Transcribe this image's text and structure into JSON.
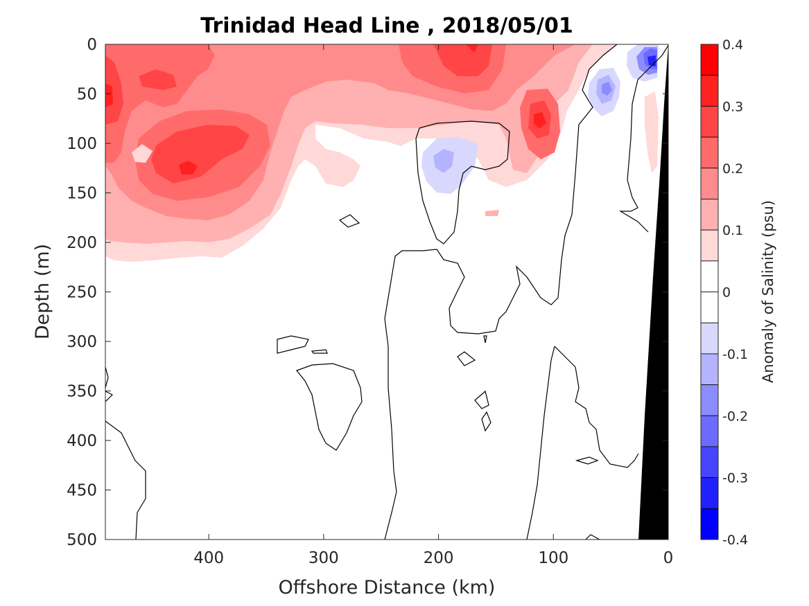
{
  "chart_data": {
    "type": "contour",
    "title": "Trinidad Head Line , 2018/05/01",
    "xlabel": "Offshore Distance (km)",
    "ylabel": "Depth (m)",
    "xlim": [
      490,
      0
    ],
    "ylim": [
      0,
      500
    ],
    "x_reversed": true,
    "y_reversed": true,
    "x_ticks": [
      400,
      300,
      200,
      100,
      0
    ],
    "y_ticks": [
      0,
      50,
      100,
      150,
      200,
      250,
      300,
      350,
      400,
      450,
      500
    ],
    "colorbar": {
      "label": "Anomaly of Salinity (psu)",
      "range": [
        -0.4,
        0.4
      ],
      "ticks": [
        0.4,
        0.3,
        0.2,
        0.1,
        0,
        -0.1,
        -0.2,
        -0.3,
        -0.4
      ],
      "levels": [
        {
          "lo": 0.35,
          "hi": 0.4,
          "color": "#ff0000"
        },
        {
          "lo": 0.3,
          "hi": 0.35,
          "color": "#ff2020"
        },
        {
          "lo": 0.25,
          "hi": 0.3,
          "color": "#ff4545"
        },
        {
          "lo": 0.2,
          "hi": 0.25,
          "color": "#ff6b6b"
        },
        {
          "lo": 0.15,
          "hi": 0.2,
          "color": "#ff8c8c"
        },
        {
          "lo": 0.1,
          "hi": 0.15,
          "color": "#ffb0b0"
        },
        {
          "lo": 0.05,
          "hi": 0.1,
          "color": "#ffd8d8"
        },
        {
          "lo": 0.0,
          "hi": 0.05,
          "color": "#ffffff"
        },
        {
          "lo": -0.05,
          "hi": 0.0,
          "color": "#ffffff"
        },
        {
          "lo": -0.1,
          "hi": -0.05,
          "color": "#d8d8ff"
        },
        {
          "lo": -0.15,
          "hi": -0.1,
          "color": "#b3b3ff"
        },
        {
          "lo": -0.2,
          "hi": -0.15,
          "color": "#8c8cff"
        },
        {
          "lo": -0.25,
          "hi": -0.2,
          "color": "#6b6bff"
        },
        {
          "lo": -0.3,
          "hi": -0.25,
          "color": "#4545ff"
        },
        {
          "lo": -0.35,
          "hi": -0.3,
          "color": "#2020ff"
        },
        {
          "lo": -0.4,
          "hi": -0.35,
          "color": "#0000ff"
        }
      ]
    },
    "features": [
      {
        "name": "positive salinity anomaly in upper 200 m offshore",
        "x_range": [
          490,
          250
        ],
        "depth_range": [
          0,
          215
        ],
        "max_value": 0.35,
        "max_at": {
          "x": 420,
          "depth": 130
        }
      },
      {
        "name": "positive salinity anomaly near surface",
        "x_range": [
          270,
          120
        ],
        "depth_range": [
          0,
          140
        ],
        "max_value": 0.3,
        "max_at": {
          "x": 170,
          "depth": 10
        }
      },
      {
        "name": "positive salinity anomaly core",
        "x_range": [
          150,
          90
        ],
        "depth_range": [
          40,
          150
        ],
        "max_value": 0.3,
        "max_at": {
          "x": 110,
          "depth": 75
        }
      },
      {
        "name": "negative salinity anomaly subsurface",
        "x_range": [
          230,
          170
        ],
        "depth_range": [
          90,
          150
        ],
        "min_value": -0.1,
        "min_at": {
          "x": 200,
          "depth": 120
        }
      },
      {
        "name": "negative salinity anomaly nearshore",
        "x_range": [
          70,
          40
        ],
        "depth_range": [
          20,
          70
        ],
        "min_value": -0.15,
        "min_at": {
          "x": 55,
          "depth": 45
        }
      },
      {
        "name": "negative salinity anomaly at coast surface",
        "x_range": [
          35,
          10
        ],
        "depth_range": [
          0,
          40
        ],
        "min_value": -0.3,
        "min_at": {
          "x": 20,
          "depth": 20
        }
      }
    ],
    "bathymetry": {
      "color": "#000000",
      "description": "continental slope near 0 km"
    },
    "grid": false
  }
}
